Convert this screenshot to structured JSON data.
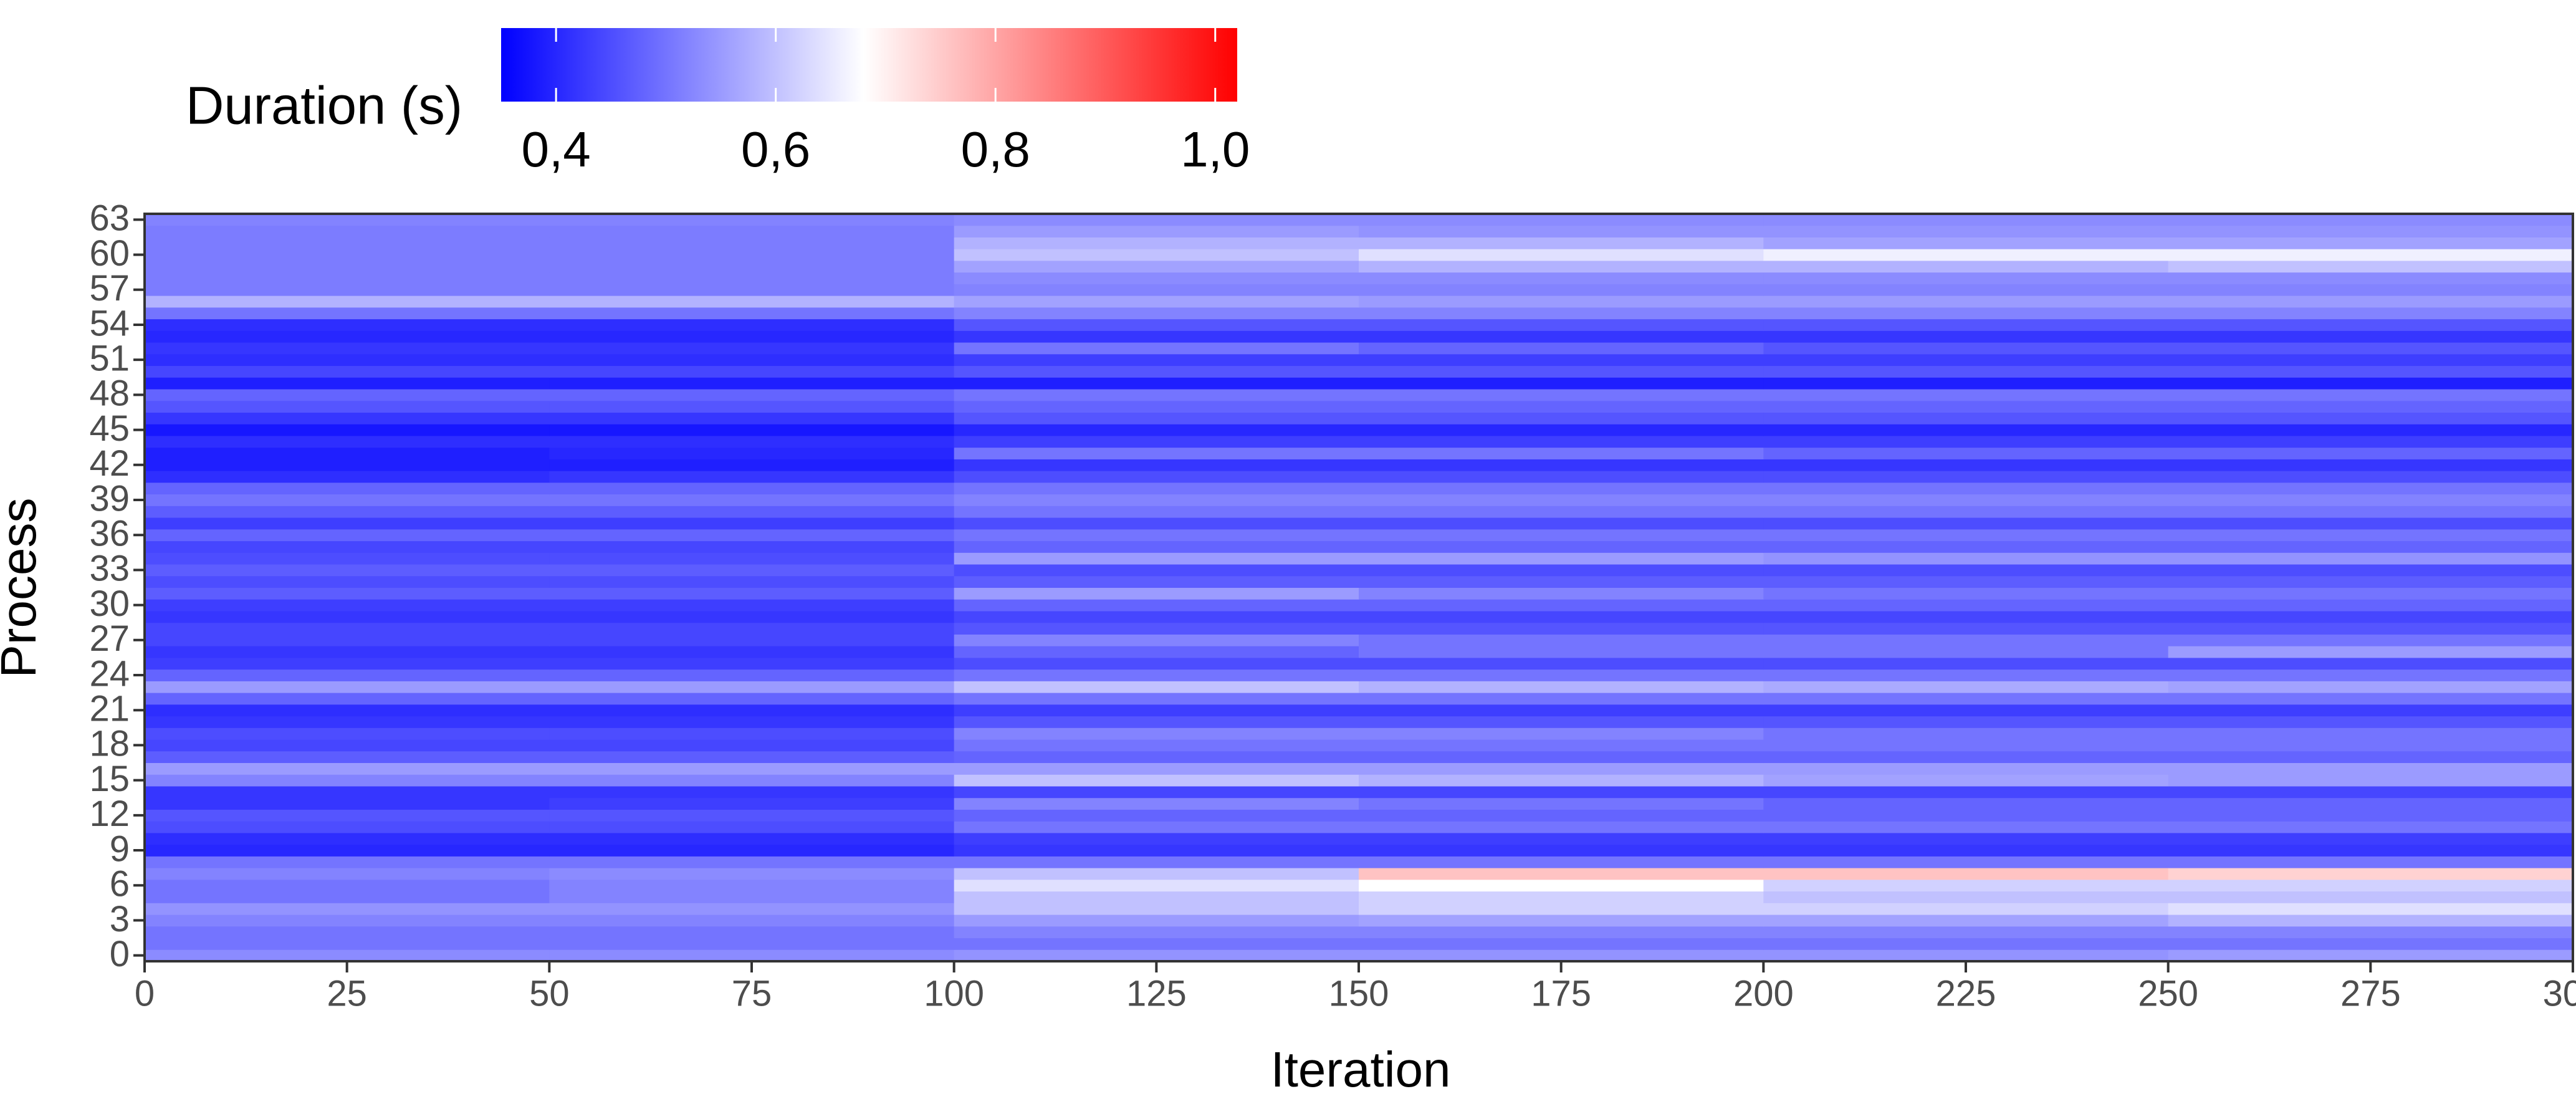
{
  "chart_data": {
    "type": "heatmap",
    "xlabel": "Iteration",
    "ylabel": "Process",
    "xbins": [
      0,
      50,
      100,
      150,
      200,
      250,
      300
    ],
    "y": [
      0,
      1,
      2,
      3,
      4,
      5,
      6,
      7,
      8,
      9,
      10,
      11,
      12,
      13,
      14,
      15,
      16,
      17,
      18,
      19,
      20,
      21,
      22,
      23,
      24,
      25,
      26,
      27,
      28,
      29,
      30,
      31,
      32,
      33,
      34,
      35,
      36,
      37,
      38,
      39,
      40,
      41,
      42,
      43,
      44,
      45,
      46,
      47,
      48,
      49,
      50,
      51,
      52,
      53,
      54,
      55,
      56,
      57,
      58,
      59,
      60,
      61,
      62,
      63
    ],
    "z": [
      [
        0.53,
        0.53,
        0.54,
        0.54,
        0.54,
        0.55
      ],
      [
        0.5,
        0.5,
        0.5,
        0.5,
        0.5,
        0.5
      ],
      [
        0.5,
        0.5,
        0.52,
        0.52,
        0.52,
        0.52
      ],
      [
        0.52,
        0.52,
        0.55,
        0.56,
        0.56,
        0.58
      ],
      [
        0.54,
        0.54,
        0.6,
        0.62,
        0.62,
        0.64
      ],
      [
        0.5,
        0.52,
        0.6,
        0.62,
        0.6,
        0.6
      ],
      [
        0.5,
        0.52,
        0.64,
        0.68,
        0.62,
        0.62
      ],
      [
        0.52,
        0.53,
        0.6,
        0.76,
        0.76,
        0.74
      ],
      [
        0.5,
        0.5,
        0.5,
        0.5,
        0.5,
        0.5
      ],
      [
        0.4,
        0.4,
        0.42,
        0.42,
        0.42,
        0.42
      ],
      [
        0.41,
        0.41,
        0.43,
        0.43,
        0.43,
        0.43
      ],
      [
        0.45,
        0.45,
        0.5,
        0.5,
        0.5,
        0.5
      ],
      [
        0.46,
        0.46,
        0.48,
        0.48,
        0.48,
        0.48
      ],
      [
        0.42,
        0.43,
        0.52,
        0.5,
        0.48,
        0.48
      ],
      [
        0.42,
        0.42,
        0.44,
        0.44,
        0.44,
        0.44
      ],
      [
        0.52,
        0.52,
        0.6,
        0.58,
        0.56,
        0.55
      ],
      [
        0.55,
        0.55,
        0.55,
        0.55,
        0.55,
        0.55
      ],
      [
        0.47,
        0.47,
        0.48,
        0.48,
        0.48,
        0.48
      ],
      [
        0.44,
        0.44,
        0.5,
        0.5,
        0.5,
        0.5
      ],
      [
        0.45,
        0.45,
        0.52,
        0.52,
        0.5,
        0.5
      ],
      [
        0.42,
        0.42,
        0.46,
        0.46,
        0.46,
        0.46
      ],
      [
        0.41,
        0.41,
        0.43,
        0.43,
        0.43,
        0.43
      ],
      [
        0.48,
        0.48,
        0.5,
        0.5,
        0.5,
        0.5
      ],
      [
        0.55,
        0.55,
        0.6,
        0.58,
        0.57,
        0.56
      ],
      [
        0.48,
        0.48,
        0.5,
        0.5,
        0.5,
        0.5
      ],
      [
        0.43,
        0.43,
        0.45,
        0.45,
        0.45,
        0.45
      ],
      [
        0.42,
        0.42,
        0.48,
        0.5,
        0.5,
        0.55
      ],
      [
        0.44,
        0.44,
        0.52,
        0.5,
        0.5,
        0.5
      ],
      [
        0.44,
        0.44,
        0.46,
        0.46,
        0.46,
        0.46
      ],
      [
        0.42,
        0.42,
        0.44,
        0.44,
        0.44,
        0.44
      ],
      [
        0.43,
        0.43,
        0.48,
        0.48,
        0.48,
        0.48
      ],
      [
        0.47,
        0.47,
        0.55,
        0.52,
        0.5,
        0.5
      ],
      [
        0.45,
        0.45,
        0.47,
        0.47,
        0.47,
        0.47
      ],
      [
        0.47,
        0.47,
        0.45,
        0.45,
        0.45,
        0.45
      ],
      [
        0.45,
        0.45,
        0.55,
        0.55,
        0.54,
        0.54
      ],
      [
        0.44,
        0.44,
        0.48,
        0.48,
        0.48,
        0.48
      ],
      [
        0.48,
        0.48,
        0.5,
        0.5,
        0.5,
        0.5
      ],
      [
        0.43,
        0.43,
        0.45,
        0.45,
        0.45,
        0.45
      ],
      [
        0.47,
        0.47,
        0.5,
        0.5,
        0.5,
        0.5
      ],
      [
        0.5,
        0.5,
        0.52,
        0.52,
        0.52,
        0.52
      ],
      [
        0.48,
        0.48,
        0.5,
        0.5,
        0.5,
        0.5
      ],
      [
        0.41,
        0.42,
        0.45,
        0.45,
        0.45,
        0.45
      ],
      [
        0.39,
        0.39,
        0.42,
        0.42,
        0.42,
        0.42
      ],
      [
        0.39,
        0.4,
        0.5,
        0.5,
        0.48,
        0.48
      ],
      [
        0.41,
        0.41,
        0.43,
        0.43,
        0.43,
        0.43
      ],
      [
        0.38,
        0.38,
        0.4,
        0.4,
        0.4,
        0.4
      ],
      [
        0.42,
        0.42,
        0.46,
        0.46,
        0.46,
        0.46
      ],
      [
        0.46,
        0.46,
        0.48,
        0.48,
        0.48,
        0.48
      ],
      [
        0.48,
        0.48,
        0.5,
        0.5,
        0.5,
        0.5
      ],
      [
        0.39,
        0.39,
        0.39,
        0.39,
        0.39,
        0.39
      ],
      [
        0.44,
        0.44,
        0.46,
        0.46,
        0.46,
        0.46
      ],
      [
        0.41,
        0.41,
        0.43,
        0.43,
        0.43,
        0.43
      ],
      [
        0.42,
        0.42,
        0.5,
        0.48,
        0.46,
        0.46
      ],
      [
        0.4,
        0.4,
        0.42,
        0.42,
        0.42,
        0.42
      ],
      [
        0.41,
        0.41,
        0.46,
        0.46,
        0.46,
        0.46
      ],
      [
        0.5,
        0.5,
        0.52,
        0.52,
        0.52,
        0.52
      ],
      [
        0.58,
        0.58,
        0.56,
        0.55,
        0.55,
        0.55
      ],
      [
        0.51,
        0.51,
        0.52,
        0.52,
        0.52,
        0.52
      ],
      [
        0.51,
        0.51,
        0.53,
        0.53,
        0.53,
        0.53
      ],
      [
        0.51,
        0.51,
        0.56,
        0.58,
        0.58,
        0.6
      ],
      [
        0.51,
        0.51,
        0.6,
        0.64,
        0.66,
        0.66
      ],
      [
        0.51,
        0.51,
        0.58,
        0.58,
        0.56,
        0.56
      ],
      [
        0.51,
        0.51,
        0.55,
        0.54,
        0.54,
        0.54
      ],
      [
        0.52,
        0.52,
        0.53,
        0.53,
        0.53,
        0.53
      ]
    ],
    "xlim": [
      0,
      300
    ],
    "xticks": [
      0,
      25,
      50,
      75,
      100,
      125,
      150,
      175,
      200,
      225,
      250,
      275,
      300
    ],
    "ylim": [
      -0.5,
      63.5
    ],
    "yticks": [
      0,
      3,
      6,
      9,
      12,
      15,
      18,
      21,
      24,
      27,
      30,
      33,
      36,
      39,
      42,
      45,
      48,
      51,
      54,
      57,
      60,
      63
    ],
    "colorbar": {
      "title": "Duration (s)",
      "lim": [
        0.35,
        1.02
      ],
      "mid": 0.68,
      "colors": [
        "#0000ff",
        "#ffffff",
        "#ff0000"
      ],
      "ticks": [
        {
          "value": 0.4,
          "label": "0,4"
        },
        {
          "value": 0.6,
          "label": "0,6"
        },
        {
          "value": 0.8,
          "label": "0,8"
        },
        {
          "value": 1.0,
          "label": "1,0"
        }
      ]
    }
  }
}
